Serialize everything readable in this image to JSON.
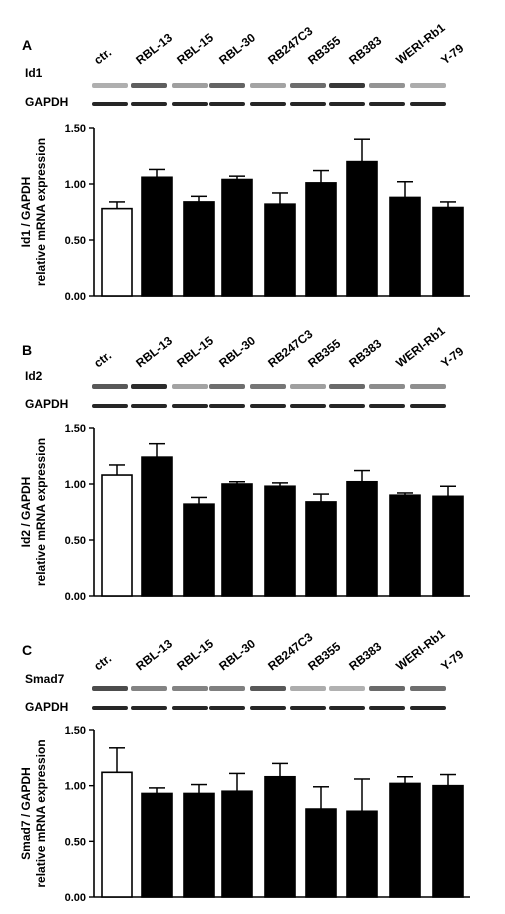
{
  "chart_data": [
    {
      "type": "bar",
      "panel": "A",
      "gene": "Id1",
      "control": "GAPDH",
      "categories": [
        "ctr.",
        "RBL-13",
        "RBL-15",
        "RBL-30",
        "RB247C3",
        "RB355",
        "RB383",
        "WERI-Rb1",
        "Y-79"
      ],
      "values": [
        0.78,
        1.06,
        0.84,
        1.04,
        0.82,
        1.01,
        1.2,
        0.88,
        0.79
      ],
      "errors": [
        0.06,
        0.07,
        0.05,
        0.03,
        0.1,
        0.11,
        0.2,
        0.14,
        0.05
      ],
      "ylabel_line1": "Id1 / GAPDH",
      "ylabel_line2": "relative mRNA expression",
      "ylim": [
        0,
        1.5
      ],
      "yticks": [
        "0.00",
        "0.50",
        "1.00",
        "1.50"
      ],
      "fill": [
        "white",
        "black",
        "black",
        "black",
        "black",
        "black",
        "black",
        "black",
        "black"
      ]
    },
    {
      "type": "bar",
      "panel": "B",
      "gene": "Id2",
      "control": "GAPDH",
      "categories": [
        "ctr.",
        "RBL-13",
        "RBL-15",
        "RBL-30",
        "RB247C3",
        "RB355",
        "RB383",
        "WERI-Rb1",
        "Y-79"
      ],
      "values": [
        1.08,
        1.24,
        0.82,
        1.0,
        0.98,
        0.84,
        1.02,
        0.9,
        0.89
      ],
      "errors": [
        0.09,
        0.12,
        0.06,
        0.02,
        0.03,
        0.07,
        0.1,
        0.02,
        0.09
      ],
      "ylabel_line1": "Id2 / GAPDH",
      "ylabel_line2": "relative mRNA expression",
      "ylim": [
        0,
        1.5
      ],
      "yticks": [
        "0.00",
        "0.50",
        "1.00",
        "1.50"
      ],
      "fill": [
        "white",
        "black",
        "black",
        "black",
        "black",
        "black",
        "black",
        "black",
        "black"
      ]
    },
    {
      "type": "bar",
      "panel": "C",
      "gene": "Smad7",
      "control": "GAPDH",
      "categories": [
        "ctr.",
        "RBL-13",
        "RBL-15",
        "RBL-30",
        "RB247C3",
        "RB355",
        "RB383",
        "WERI-Rb1",
        "Y-79"
      ],
      "values": [
        1.12,
        0.93,
        0.93,
        0.95,
        1.08,
        0.79,
        0.77,
        1.02,
        1.0
      ],
      "errors": [
        0.22,
        0.05,
        0.08,
        0.16,
        0.12,
        0.2,
        0.29,
        0.06,
        0.1
      ],
      "ylabel_line1": "Smad7 / GAPDH",
      "ylabel_line2": "relative mRNA expression",
      "ylim": [
        0,
        1.5
      ],
      "yticks": [
        "0.00",
        "0.50",
        "1.00",
        "1.50"
      ],
      "fill": [
        "white",
        "black",
        "black",
        "black",
        "black",
        "black",
        "black",
        "black",
        "black"
      ]
    }
  ],
  "colors": {
    "bar_fill": "#000000",
    "control_fill": "#ffffff",
    "axis": "#000000",
    "band": "#1a1a1a"
  }
}
